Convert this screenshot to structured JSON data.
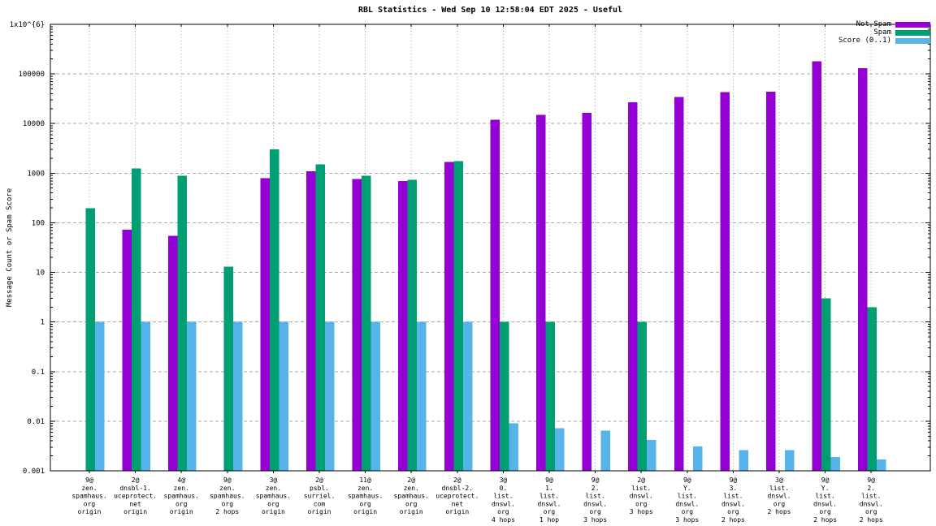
{
  "title": "RBL Statistics - Wed Sep 10 12:58:04 EDT 2025 - Useful",
  "y_axis": {
    "label": "Message Count or Spam Score",
    "ticks": [
      {
        "value": 1000000,
        "label": "1x10^{6}"
      },
      {
        "value": 100000,
        "label": "100000"
      },
      {
        "value": 10000,
        "label": "10000"
      },
      {
        "value": 1000,
        "label": "1000"
      },
      {
        "value": 100,
        "label": "100"
      },
      {
        "value": 10,
        "label": "10"
      },
      {
        "value": 1,
        "label": "1"
      },
      {
        "value": 0.1,
        "label": "0.1"
      },
      {
        "value": 0.01,
        "label": "0.01"
      },
      {
        "value": 0.001,
        "label": "0.001"
      }
    ]
  },
  "legend": [
    {
      "label": "Not Spam",
      "color": "#9400d3"
    },
    {
      "label": "Spam",
      "color": "#009e73"
    },
    {
      "label": "Score (0..1)",
      "color": "#56b4e9"
    }
  ],
  "colors": {
    "not_spam": "#9400d3",
    "spam": "#009e73",
    "score": "#56b4e9",
    "grid": "#a8a8a8",
    "axis": "#000000",
    "background": "#ffffff"
  },
  "chart_data": {
    "type": "bar",
    "y_scale": "log",
    "ylim": [
      0.001,
      1000000
    ],
    "grid": true,
    "legend_position": "top-right",
    "title": "RBL Statistics - Wed Sep 10 12:58:04 EDT 2025 - Useful",
    "ylabel": "Message Count or Spam Score",
    "categories": [
      [
        "9@",
        "zen.",
        "spamhaus.",
        "org",
        "origin"
      ],
      [
        "2@",
        "dnsbl-1.",
        "uceprotect.",
        "net",
        "origin"
      ],
      [
        "4@",
        "zen.",
        "spamhaus.",
        "org",
        "origin"
      ],
      [
        "9@",
        "zen.",
        "spamhaus.",
        "org",
        "2 hops"
      ],
      [
        "3@",
        "zen.",
        "spamhaus.",
        "org",
        "origin"
      ],
      [
        "2@",
        "psbl.",
        "surriel.",
        "com",
        "origin"
      ],
      [
        "11@",
        "zen.",
        "spamhaus.",
        "org",
        "origin"
      ],
      [
        "2@",
        "zen.",
        "spamhaus.",
        "org",
        "origin"
      ],
      [
        "2@",
        "dnsbl-2.",
        "uceprotect.",
        "net",
        "origin"
      ],
      [
        "3@",
        "0.",
        "list.",
        "dnswl.",
        "org",
        "4 hops"
      ],
      [
        "9@",
        "1.",
        "list.",
        "dnswl.",
        "org",
        "1 hop"
      ],
      [
        "9@",
        "2.",
        "list.",
        "dnswl.",
        "org",
        "3 hops"
      ],
      [
        "2@",
        "list.",
        "dnswl.",
        "org",
        "3 hops"
      ],
      [
        "9@",
        "Y.",
        "list.",
        "dnswl.",
        "org",
        "3 hops"
      ],
      [
        "9@",
        "3.",
        "list.",
        "dnswl.",
        "org",
        "2 hops"
      ],
      [
        "3@",
        "list.",
        "dnswl.",
        "org",
        "2 hops"
      ],
      [
        "9@",
        "Y.",
        "list.",
        "dnswl.",
        "org",
        "2 hops"
      ],
      [
        "9@",
        "2.",
        "list.",
        "dnswl.",
        "org",
        "2 hops"
      ]
    ],
    "series": [
      {
        "name": "Not Spam",
        "color": "#9400d3",
        "values": [
          null,
          72,
          55,
          null,
          800,
          1100,
          770,
          700,
          1700,
          12000,
          15000,
          16500,
          27000,
          34000,
          43000,
          44000,
          180000,
          130000
        ]
      },
      {
        "name": "Spam",
        "color": "#009e73",
        "values": [
          195,
          1250,
          880,
          13,
          3000,
          1500,
          880,
          730,
          1750,
          1,
          1,
          null,
          1,
          null,
          null,
          null,
          3,
          2
        ]
      },
      {
        "name": "Score (0..1)",
        "color": "#56b4e9",
        "values": [
          1,
          1,
          1,
          1,
          1,
          1,
          1,
          1,
          1,
          0.009,
          0.0072,
          0.0065,
          0.0042,
          0.0031,
          0.0026,
          0.0026,
          0.0019,
          0.0017
        ]
      }
    ]
  }
}
